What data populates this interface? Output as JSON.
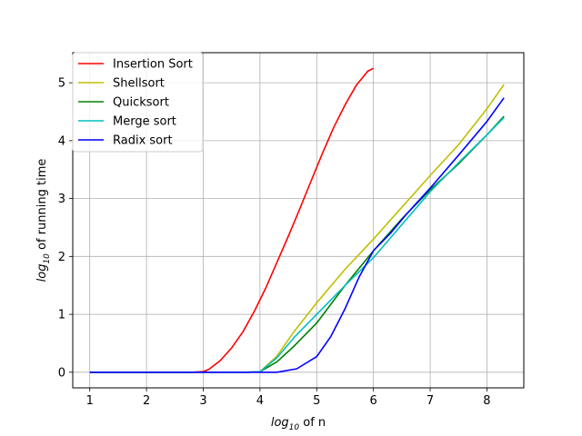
{
  "chart_data": {
    "type": "line",
    "xlabel_prefix": "log",
    "xlabel_sub": "10",
    "xlabel_suffix": " of n",
    "ylabel_prefix": "log",
    "ylabel_sub": "10",
    "ylabel_suffix": " of running time",
    "xlim": [
      0.7,
      8.65
    ],
    "ylim": [
      -0.27,
      5.52
    ],
    "xticks": [
      "1",
      "2",
      "3",
      "4",
      "5",
      "6",
      "7",
      "8"
    ],
    "yticks": [
      "0",
      "1",
      "2",
      "3",
      "4",
      "5"
    ],
    "grid": true,
    "legend_position": "top-left",
    "series": [
      {
        "name": "Insertion Sort",
        "color": "#ff0000",
        "x": [
          1,
          1.5,
          2,
          2.5,
          2.8,
          3.0,
          3.1,
          3.3,
          3.5,
          3.7,
          3.9,
          4.1,
          4.3,
          4.5,
          4.7,
          4.9,
          5.1,
          5.3,
          5.5,
          5.7,
          5.9,
          6.0
        ],
        "y": [
          0,
          0,
          0,
          0,
          0,
          0.01,
          0.05,
          0.2,
          0.42,
          0.7,
          1.05,
          1.45,
          1.9,
          2.35,
          2.82,
          3.3,
          3.78,
          4.23,
          4.62,
          4.96,
          5.2,
          5.25
        ]
      },
      {
        "name": "Shellsort",
        "color": "#bfbf00",
        "x": [
          1,
          2,
          3,
          3.8,
          4.0,
          4.3,
          4.6,
          5.0,
          5.5,
          6.0,
          6.5,
          7.0,
          7.5,
          8.0,
          8.3
        ],
        "y": [
          0,
          0,
          0,
          0,
          0.01,
          0.28,
          0.7,
          1.2,
          1.78,
          2.3,
          2.85,
          3.4,
          3.93,
          4.55,
          4.97
        ]
      },
      {
        "name": "Quicksort",
        "color": "#008000",
        "x": [
          1,
          2,
          3,
          3.8,
          4.0,
          4.3,
          4.6,
          5.0,
          5.5,
          6.0,
          6.5,
          7.0,
          7.5,
          8.0,
          8.3
        ],
        "y": [
          0,
          0,
          0,
          0,
          0.01,
          0.18,
          0.45,
          0.85,
          1.5,
          2.1,
          2.65,
          3.15,
          3.6,
          4.1,
          4.42
        ]
      },
      {
        "name": "Merge sort",
        "color": "#00bfbf",
        "x": [
          1,
          2,
          3,
          3.8,
          4.0,
          4.3,
          4.6,
          5.0,
          5.5,
          6.0,
          6.5,
          7.0,
          7.5,
          8.0,
          8.3
        ],
        "y": [
          0,
          0,
          0,
          0,
          0.01,
          0.25,
          0.6,
          1.0,
          1.5,
          1.98,
          2.55,
          3.12,
          3.62,
          4.1,
          4.4
        ]
      },
      {
        "name": "Radix sort",
        "color": "#0000ff",
        "x": [
          1,
          2,
          3,
          4.0,
          4.3,
          4.65,
          5.0,
          5.25,
          5.5,
          5.75,
          6.0,
          6.3,
          6.6,
          7.0,
          7.5,
          8.0,
          8.3
        ],
        "y": [
          0,
          0,
          0,
          0,
          0,
          0.06,
          0.27,
          0.62,
          1.1,
          1.65,
          2.1,
          2.4,
          2.75,
          3.18,
          3.75,
          4.33,
          4.74
        ]
      }
    ]
  }
}
